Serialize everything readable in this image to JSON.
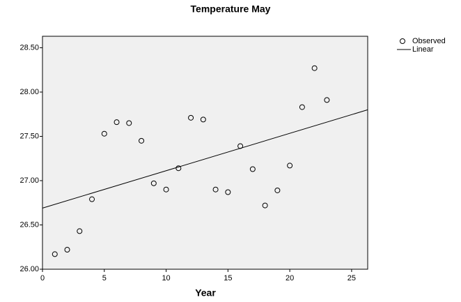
{
  "chart_data": {
    "type": "scatter",
    "title": "Temperature May",
    "x_label": "Year",
    "series": [
      {
        "name": "Observed",
        "color": "#000000",
        "x": [
          1,
          2,
          3,
          4,
          5,
          6,
          7,
          8,
          9,
          10,
          11,
          12,
          13,
          14,
          15,
          16,
          17,
          18,
          19,
          20,
          21,
          22,
          23
        ],
        "values": [
          26.17,
          26.22,
          26.43,
          26.79,
          27.53,
          27.66,
          27.65,
          27.45,
          26.97,
          26.9,
          27.14,
          27.71,
          27.69,
          26.9,
          26.87,
          27.39,
          27.13,
          26.72,
          26.89,
          27.17,
          27.83,
          28.27,
          27.91
        ]
      },
      {
        "name": "Linear",
        "color": "#000000",
        "x": [
          0,
          26.3
        ],
        "values": [
          26.69,
          27.8
        ]
      }
    ],
    "xlim": [
      0,
      26.3
    ],
    "ylim": [
      26,
      28.63
    ],
    "xticks": [
      0,
      5,
      10,
      15,
      20,
      25
    ],
    "yticks": [
      {
        "value": 26,
        "label": "26.00"
      },
      {
        "value": 26.5,
        "label": "26.50"
      },
      {
        "value": 27,
        "label": "27.00"
      },
      {
        "value": 27.5,
        "label": "27.50"
      },
      {
        "value": 28,
        "label": "28.00"
      },
      {
        "value": 28.5,
        "label": "28.50"
      }
    ],
    "legend": "top-right"
  }
}
